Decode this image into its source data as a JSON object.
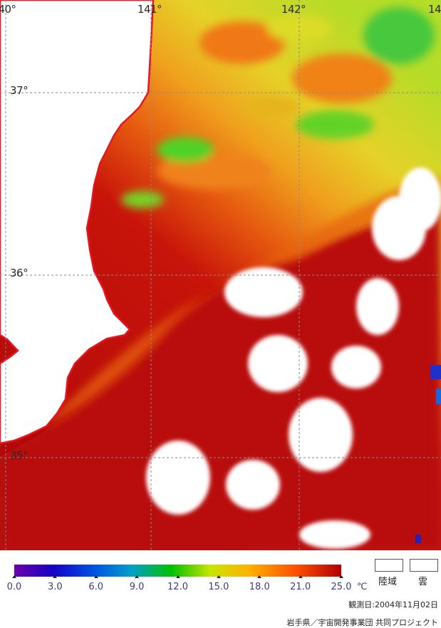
{
  "map": {
    "longitude_labels": [
      "40°",
      "141°",
      "142°",
      "14"
    ],
    "latitude_labels": [
      "37°",
      "36°",
      "35°"
    ]
  },
  "colorbar": {
    "ticks": [
      "0.0",
      "3.0",
      "6.0",
      "9.0",
      "12.0",
      "15.0",
      "18.0",
      "21.0",
      "25.0"
    ],
    "unit": "℃"
  },
  "legend": {
    "land_label": "陸域",
    "cloud_label": "雲"
  },
  "footer": {
    "observation_date": "観測日:2004年11月02日",
    "credit": "岩手県／宇宙開発事業団 共同プロジェクト"
  },
  "colors": {
    "land_coast": "#e8141e",
    "warm_water": "#b40a0a",
    "cool_water": "#f0c814"
  }
}
